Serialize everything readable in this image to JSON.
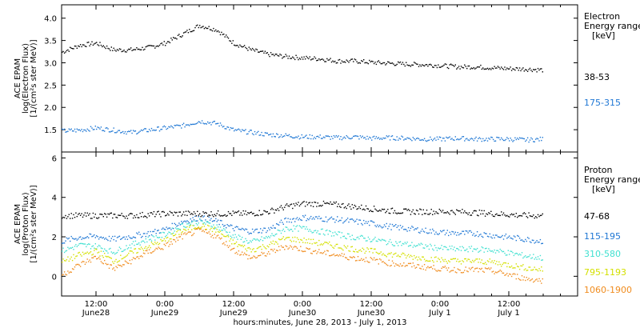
{
  "chart_data": [
    {
      "type": "scatter",
      "ylabel_lines": [
        "ACE EPAM",
        "log(Electron Flux)",
        "[1/(cm²s ster MeV)]"
      ],
      "x_range_hours": [
        -6,
        84
      ],
      "ylim": [
        1.0,
        4.3
      ],
      "yticks": [
        1.5,
        2.0,
        2.5,
        3.0,
        3.5,
        4.0
      ],
      "ytick_labels": [
        "1.5",
        "2.0",
        "2.5",
        "3.0",
        "3.5",
        "4.0"
      ],
      "legend_title": [
        "Electron",
        "Energy range",
        "[keV]"
      ],
      "series": [
        {
          "name": "38-53",
          "color": "#000000",
          "x": [
            -6,
            -3,
            0,
            3,
            6,
            9,
            12,
            15,
            18,
            21,
            24,
            27,
            30,
            33,
            36,
            39,
            42,
            45,
            48,
            51,
            54,
            57,
            60,
            63,
            66,
            69,
            72,
            75,
            78
          ],
          "y": [
            3.25,
            3.4,
            3.45,
            3.3,
            3.3,
            3.35,
            3.45,
            3.65,
            3.85,
            3.75,
            3.45,
            3.3,
            3.2,
            3.15,
            3.12,
            3.1,
            3.05,
            3.05,
            3.02,
            3.0,
            2.98,
            2.97,
            2.95,
            2.92,
            2.92,
            2.9,
            2.88,
            2.87,
            2.85
          ]
        },
        {
          "name": "175-315",
          "color": "#1f77d4",
          "x": [
            -6,
            -3,
            0,
            3,
            6,
            9,
            12,
            15,
            18,
            21,
            24,
            27,
            30,
            33,
            36,
            39,
            42,
            45,
            48,
            51,
            54,
            57,
            60,
            63,
            66,
            69,
            72,
            75,
            78
          ],
          "y": [
            1.48,
            1.5,
            1.55,
            1.5,
            1.45,
            1.5,
            1.55,
            1.6,
            1.7,
            1.65,
            1.5,
            1.45,
            1.4,
            1.38,
            1.35,
            1.35,
            1.33,
            1.35,
            1.32,
            1.33,
            1.32,
            1.3,
            1.3,
            1.32,
            1.3,
            1.3,
            1.3,
            1.28,
            1.3
          ]
        }
      ]
    },
    {
      "type": "scatter",
      "ylabel_lines": [
        "ACE EPAM",
        "log(Proton Flux)",
        "[1/(cm²s ster MeV)]"
      ],
      "x_range_hours": [
        -6,
        84
      ],
      "ylim": [
        -1.0,
        6.3
      ],
      "yticks": [
        0,
        2,
        4,
        6
      ],
      "ytick_labels": [
        "0",
        "2",
        "4",
        "6"
      ],
      "xticks_hours": [
        0,
        12,
        24,
        36,
        48,
        60,
        72,
        84
      ],
      "xtick_labels": [
        [
          "12:00",
          "June28"
        ],
        [
          "0:00",
          "June29"
        ],
        [
          "12:00",
          "June29"
        ],
        [
          "0:00",
          "June30"
        ],
        [
          "12:00",
          "June30"
        ],
        [
          "0:00",
          "July 1"
        ],
        [
          "12:00",
          "July 1"
        ],
        [
          "",
          ""
        ]
      ],
      "xlabel": "hours:minutes, June 28, 2013 - July  1, 2013",
      "legend_title": [
        "Proton",
        "Energy range",
        "[keV]"
      ],
      "series": [
        {
          "name": "47-68",
          "color": "#000000",
          "x": [
            -6,
            -3,
            0,
            3,
            6,
            9,
            12,
            15,
            18,
            21,
            24,
            27,
            30,
            33,
            36,
            39,
            42,
            45,
            48,
            51,
            54,
            57,
            60,
            63,
            66,
            69,
            72,
            75,
            78
          ],
          "y": [
            3.1,
            3.1,
            3.1,
            3.1,
            3.1,
            3.15,
            3.2,
            3.2,
            3.2,
            3.2,
            3.2,
            3.2,
            3.3,
            3.55,
            3.7,
            3.7,
            3.65,
            3.55,
            3.45,
            3.35,
            3.3,
            3.3,
            3.3,
            3.3,
            3.25,
            3.2,
            3.15,
            3.1,
            3.1
          ]
        },
        {
          "name": "115-195",
          "color": "#1f77d4",
          "x": [
            -6,
            -3,
            0,
            3,
            6,
            9,
            12,
            15,
            18,
            21,
            24,
            27,
            30,
            33,
            36,
            39,
            42,
            45,
            48,
            51,
            54,
            57,
            60,
            63,
            66,
            69,
            72,
            75,
            78
          ],
          "y": [
            1.8,
            2.0,
            2.05,
            1.9,
            2.05,
            2.2,
            2.4,
            2.8,
            3.0,
            2.8,
            2.45,
            2.3,
            2.4,
            2.85,
            3.0,
            2.95,
            2.9,
            2.8,
            2.7,
            2.55,
            2.45,
            2.35,
            2.25,
            2.2,
            2.2,
            2.1,
            2.0,
            1.9,
            1.8
          ]
        },
        {
          "name": "310-580",
          "color": "#40e0d0",
          "x": [
            -6,
            -3,
            0,
            3,
            6,
            9,
            12,
            15,
            18,
            21,
            24,
            27,
            30,
            33,
            36,
            39,
            42,
            45,
            48,
            51,
            54,
            57,
            60,
            63,
            66,
            69,
            72,
            75,
            78
          ],
          "y": [
            1.3,
            1.6,
            1.55,
            1.25,
            1.6,
            1.9,
            2.15,
            2.6,
            2.8,
            2.55,
            2.05,
            1.75,
            2.0,
            2.45,
            2.45,
            2.3,
            2.15,
            2.0,
            1.9,
            1.75,
            1.65,
            1.55,
            1.45,
            1.4,
            1.4,
            1.35,
            1.2,
            1.05,
            0.95
          ]
        },
        {
          "name": "795-1193",
          "color": "#d4e000",
          "x": [
            -6,
            -3,
            0,
            3,
            6,
            9,
            12,
            15,
            18,
            21,
            24,
            27,
            30,
            33,
            36,
            39,
            42,
            45,
            48,
            51,
            54,
            57,
            60,
            63,
            66,
            69,
            72,
            75,
            78
          ],
          "y": [
            0.75,
            1.1,
            1.3,
            0.8,
            1.2,
            1.55,
            1.85,
            2.35,
            2.6,
            2.35,
            1.7,
            1.35,
            1.6,
            1.95,
            1.85,
            1.7,
            1.55,
            1.4,
            1.3,
            1.15,
            1.05,
            0.95,
            0.85,
            0.8,
            0.8,
            0.75,
            0.6,
            0.45,
            0.35
          ]
        },
        {
          "name": "1060-1900",
          "color": "#f08c1e",
          "x": [
            -6,
            -3,
            0,
            3,
            6,
            9,
            12,
            15,
            18,
            21,
            24,
            27,
            30,
            33,
            36,
            39,
            42,
            45,
            48,
            51,
            54,
            57,
            60,
            63,
            66,
            69,
            72,
            75,
            78
          ],
          "y": [
            0.1,
            0.6,
            1.0,
            0.4,
            0.8,
            1.25,
            1.55,
            2.05,
            2.35,
            2.05,
            1.35,
            0.95,
            1.2,
            1.55,
            1.4,
            1.25,
            1.1,
            0.95,
            0.85,
            0.7,
            0.6,
            0.5,
            0.4,
            0.35,
            0.35,
            0.3,
            0.1,
            -0.1,
            -0.2
          ]
        }
      ]
    }
  ]
}
